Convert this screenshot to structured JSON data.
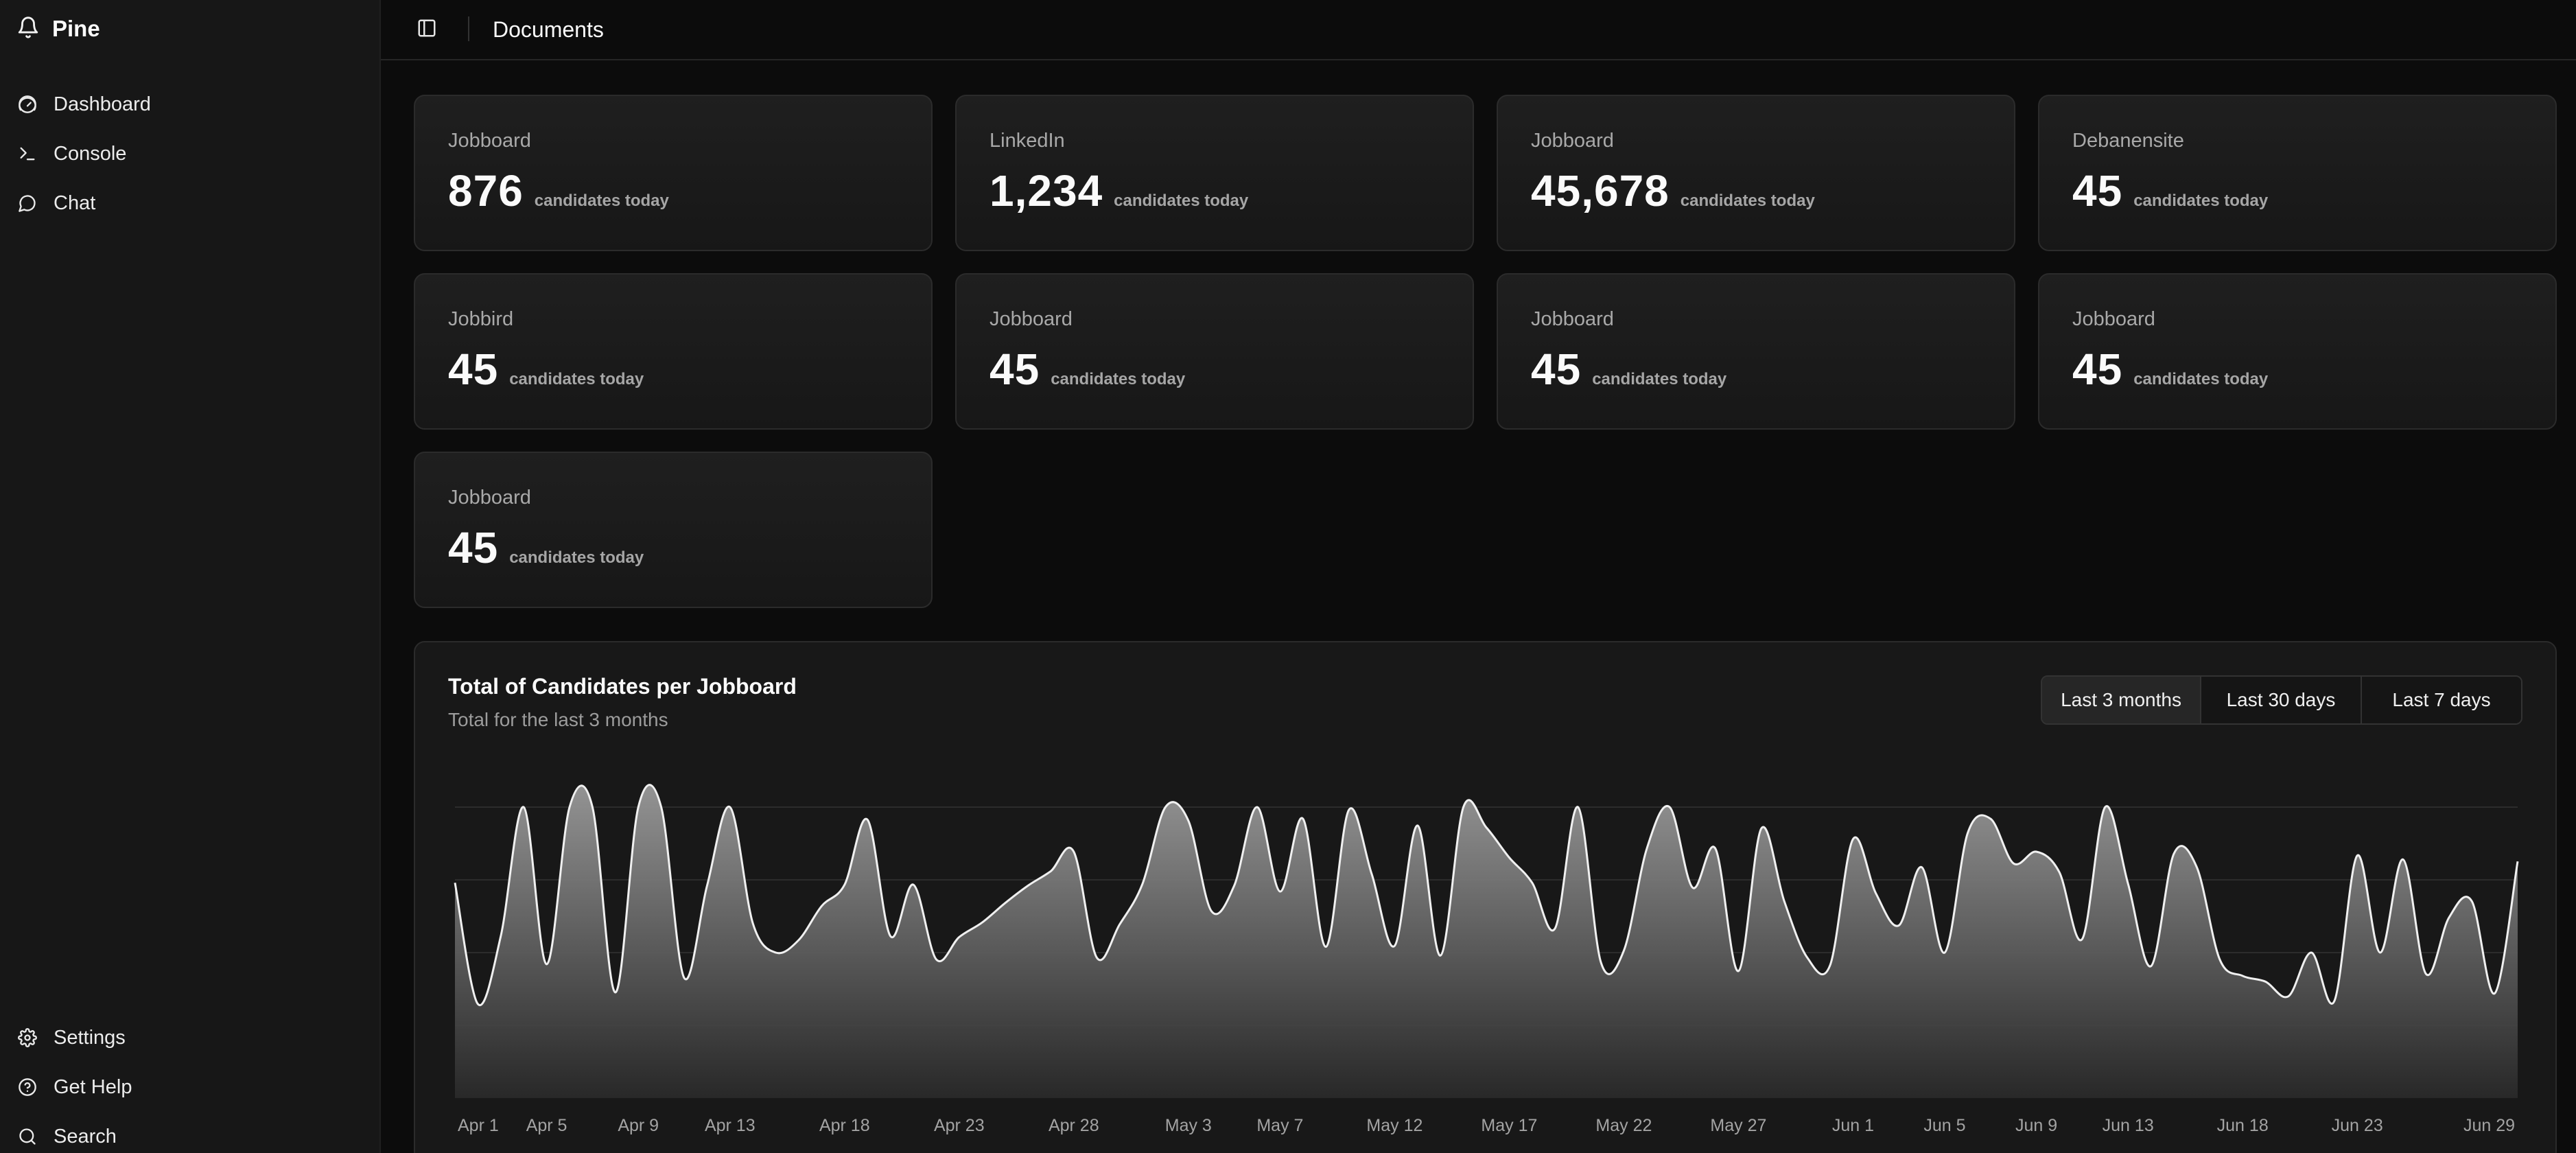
{
  "app": {
    "name": "Pine"
  },
  "sidebar": {
    "items": [
      {
        "label": "Dashboard",
        "icon": "gauge-icon"
      },
      {
        "label": "Console",
        "icon": "terminal-icon"
      },
      {
        "label": "Chat",
        "icon": "chat-bubble-icon"
      }
    ],
    "bottom_items": [
      {
        "label": "Settings",
        "icon": "gear-icon"
      },
      {
        "label": "Get Help",
        "icon": "help-circle-icon"
      },
      {
        "label": "Search",
        "icon": "search-icon"
      }
    ]
  },
  "header": {
    "title": "Documents"
  },
  "cards": [
    {
      "label": "Jobboard",
      "value": "876",
      "suffix": "candidates today"
    },
    {
      "label": "LinkedIn",
      "value": "1,234",
      "suffix": "candidates today"
    },
    {
      "label": "Jobboard",
      "value": "45,678",
      "suffix": "candidates today"
    },
    {
      "label": "Debanensite",
      "value": "45",
      "suffix": "candidates today"
    },
    {
      "label": "Jobbird",
      "value": "45",
      "suffix": "candidates today"
    },
    {
      "label": "Jobboard",
      "value": "45",
      "suffix": "candidates today"
    },
    {
      "label": "Jobboard",
      "value": "45",
      "suffix": "candidates today"
    },
    {
      "label": "Jobboard",
      "value": "45",
      "suffix": "candidates today"
    },
    {
      "label": "Jobboard",
      "value": "45",
      "suffix": "candidates today"
    }
  ],
  "chart": {
    "title": "Total of Candidates per Jobboard",
    "subtitle": "Total for the last 3 months",
    "ranges": [
      "Last 3 months",
      "Last 30 days",
      "Last 7 days"
    ],
    "active_range": "Last 3 months"
  },
  "chart_data": {
    "type": "area",
    "title": "Total of Candidates per Jobboard",
    "subtitle": "Total for the last 3 months",
    "xlabel": "",
    "ylabel": "",
    "grid": true,
    "x_tick_labels": [
      "Apr 1",
      "Apr 5",
      "Apr 9",
      "Apr 13",
      "Apr 18",
      "Apr 23",
      "Apr 28",
      "May 3",
      "May 7",
      "May 12",
      "May 17",
      "May 22",
      "May 27",
      "Jun 1",
      "Jun 5",
      "Jun 9",
      "Jun 13",
      "Jun 18",
      "Jun 23",
      "Jun 29"
    ],
    "x": [
      "Apr 1",
      "Apr 2",
      "Apr 3",
      "Apr 4",
      "Apr 5",
      "Apr 6",
      "Apr 7",
      "Apr 8",
      "Apr 9",
      "Apr 10",
      "Apr 11",
      "Apr 12",
      "Apr 13",
      "Apr 14",
      "Apr 15",
      "Apr 16",
      "Apr 17",
      "Apr 18",
      "Apr 19",
      "Apr 20",
      "Apr 21",
      "Apr 22",
      "Apr 23",
      "Apr 24",
      "Apr 25",
      "Apr 26",
      "Apr 27",
      "Apr 28",
      "Apr 29",
      "Apr 30",
      "May 1",
      "May 2",
      "May 3",
      "May 4",
      "May 5",
      "May 6",
      "May 7",
      "May 8",
      "May 9",
      "May 10",
      "May 11",
      "May 12",
      "May 13",
      "May 14",
      "May 15",
      "May 16",
      "May 17",
      "May 18",
      "May 19",
      "May 20",
      "May 21",
      "May 22",
      "May 23",
      "May 24",
      "May 25",
      "May 26",
      "May 27",
      "May 28",
      "May 29",
      "May 30",
      "May 31",
      "Jun 1",
      "Jun 2",
      "Jun 3",
      "Jun 4",
      "Jun 5",
      "Jun 6",
      "Jun 7",
      "Jun 8",
      "Jun 9",
      "Jun 10",
      "Jun 11",
      "Jun 12",
      "Jun 13",
      "Jun 14",
      "Jun 15",
      "Jun 16",
      "Jun 17",
      "Jun 18",
      "Jun 19",
      "Jun 20",
      "Jun 21",
      "Jun 22",
      "Jun 23",
      "Jun 24",
      "Jun 25",
      "Jun 26",
      "Jun 27",
      "Jun 28",
      "Jun 29",
      "Jun 30"
    ],
    "series": [
      {
        "values": [
          222,
          97,
          167,
          372,
          138,
          301,
          406,
          109,
          316,
          347,
          124,
          219,
          377,
          180,
          150,
          163,
          198,
          220,
          287,
          167,
          220,
          143,
          166,
          181,
          201,
          219,
          234,
          254,
          145,
          179,
          221,
          324,
          286,
          193,
          219,
          316,
          213,
          288,
          156,
          297,
          231,
          157,
          281,
          147,
          316,
          279,
          248,
          222,
          175,
          305,
          140,
          152,
          257,
          311,
          217,
          257,
          131,
          278,
          203,
          145,
          137,
          267,
          211,
          178,
          238,
          150,
          273,
          288,
          242,
          254,
          233,
          164,
          309,
          221,
          136,
          252,
          238,
          143,
          126,
          120,
          105,
          150,
          100,
          250,
          150,
          246,
          128,
          186,
          203,
          108,
          244
        ]
      }
    ]
  }
}
